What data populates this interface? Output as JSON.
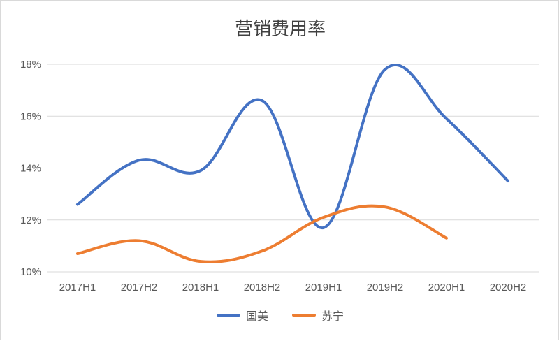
{
  "chart_data": {
    "type": "line",
    "title": "营销费用率",
    "categories": [
      "2017H1",
      "2017H2",
      "2018H1",
      "2018H2",
      "2019H1",
      "2019H2",
      "2020H1",
      "2020H2"
    ],
    "ylim": [
      10,
      18
    ],
    "yticks": [
      "10%",
      "12%",
      "14%",
      "16%",
      "18%"
    ],
    "ytick_values": [
      10,
      12,
      14,
      16,
      18
    ],
    "grid": true,
    "legend_position": "bottom",
    "series": [
      {
        "name": "国美",
        "color": "#4472c4",
        "values": [
          12.6,
          14.3,
          13.9,
          16.6,
          11.7,
          17.8,
          15.9,
          13.5
        ]
      },
      {
        "name": "苏宁",
        "color": "#ed7d31",
        "values": [
          10.7,
          11.2,
          10.4,
          10.8,
          12.1,
          12.5,
          11.3,
          null
        ]
      }
    ]
  }
}
